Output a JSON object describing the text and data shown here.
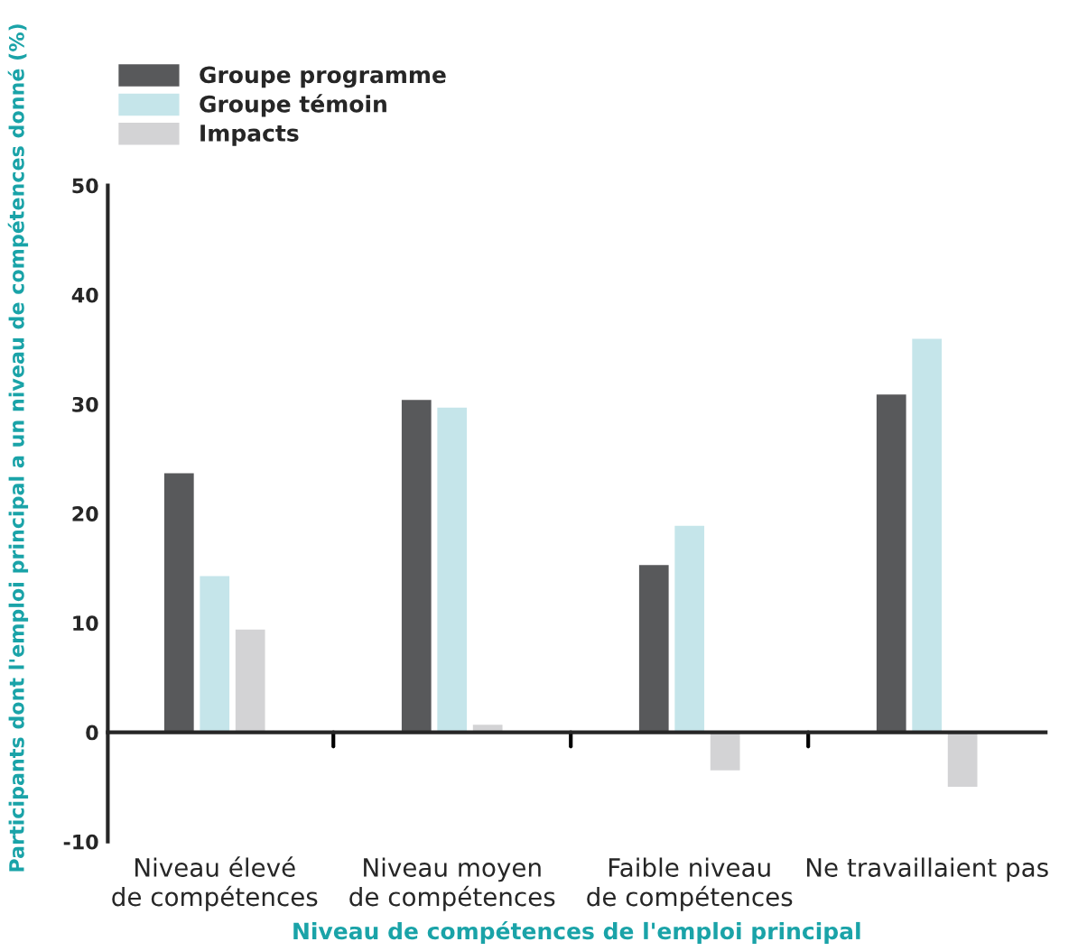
{
  "chart_data": {
    "type": "bar",
    "xlabel": "Niveau de compétences de l'emploi principal",
    "ylabel": "Participants dont l'emploi principal a un niveau de compétences donné (%)",
    "categories": [
      "Niveau élevé\nde compétences",
      "Niveau moyen\nde compétences",
      "Faible niveau\nde compétences",
      "Ne travaillaient pas"
    ],
    "series": [
      {
        "name": "Groupe programme",
        "color": "#58595b",
        "values": [
          23.8,
          30.5,
          15.4,
          31.0
        ]
      },
      {
        "name": "Groupe témoin",
        "color": "#c5e5ea",
        "values": [
          14.4,
          29.8,
          19.0,
          36.1
        ]
      },
      {
        "name": "Impacts",
        "color": "#d3d3d5",
        "values": [
          9.5,
          0.8,
          -3.6,
          -5.1
        ]
      }
    ],
    "ylim": [
      -10,
      50
    ],
    "yticks": [
      -10,
      0,
      10,
      20,
      30,
      40,
      50
    ],
    "legend": "top left"
  }
}
